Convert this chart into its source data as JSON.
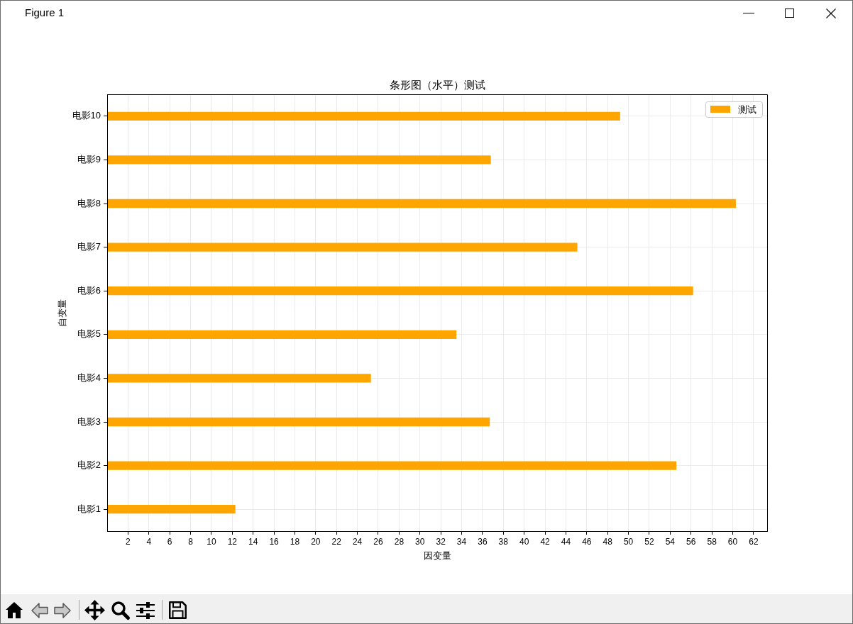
{
  "chart_data": {
    "type": "bar",
    "orientation": "horizontal",
    "title": "条形图（水平）测试",
    "xlabel": "因变量",
    "ylabel": "自变量",
    "categories": [
      "电影10",
      "电影9",
      "电影8",
      "电影7",
      "电影6",
      "电影5",
      "电影4",
      "电影3",
      "电影2",
      "电影1"
    ],
    "series": [
      {
        "name": "测试",
        "color": "#ffa500",
        "values": [
          49.2,
          36.8,
          60.3,
          45.1,
          56.2,
          33.5,
          25.3,
          36.7,
          54.6,
          12.3
        ]
      }
    ],
    "xlim": [
      0,
      63.3
    ],
    "xticks": [
      2,
      4,
      6,
      8,
      10,
      12,
      14,
      16,
      18,
      20,
      22,
      24,
      26,
      28,
      30,
      32,
      34,
      36,
      38,
      40,
      42,
      44,
      46,
      48,
      50,
      52,
      54,
      56,
      58,
      60,
      62
    ],
    "grid": true,
    "legend": "top right",
    "annotations": [
      "Figure 1"
    ]
  }
}
